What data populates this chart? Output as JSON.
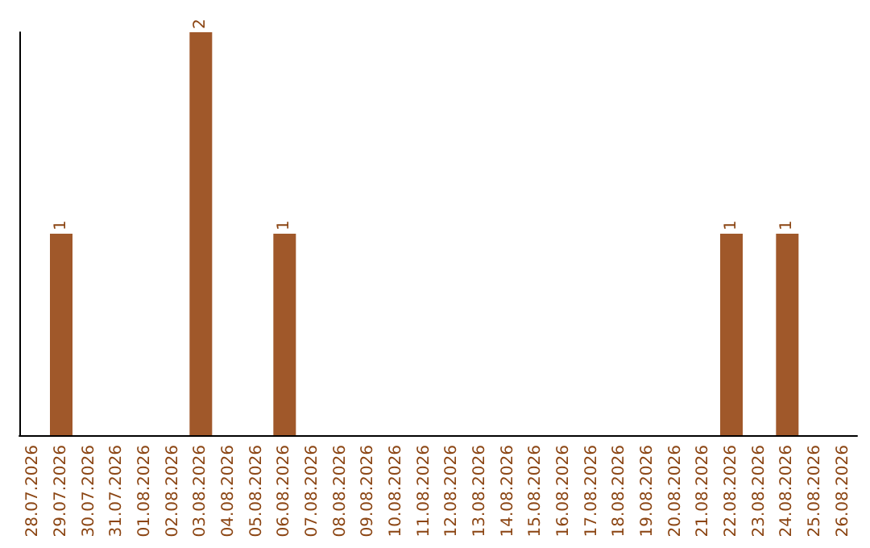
{
  "chart_data": {
    "type": "bar",
    "categories": [
      "28.07.2026",
      "29.07.2026",
      "30.07.2026",
      "31.07.2026",
      "01.08.2026",
      "02.08.2026",
      "03.08.2026",
      "04.08.2026",
      "05.08.2026",
      "06.08.2026",
      "07.08.2026",
      "08.08.2026",
      "09.08.2026",
      "10.08.2026",
      "11.08.2026",
      "12.08.2026",
      "13.08.2026",
      "14.08.2026",
      "15.08.2026",
      "16.08.2026",
      "17.08.2026",
      "18.08.2026",
      "19.08.2026",
      "20.08.2026",
      "21.08.2026",
      "22.08.2026",
      "23.08.2026",
      "24.08.2026",
      "25.08.2026",
      "26.08.2026"
    ],
    "values": [
      0,
      1,
      0,
      0,
      0,
      0,
      2,
      0,
      0,
      1,
      0,
      0,
      0,
      0,
      0,
      0,
      0,
      0,
      0,
      0,
      0,
      0,
      0,
      0,
      0,
      1,
      0,
      1,
      0,
      0
    ],
    "value_labels": [
      null,
      "1",
      null,
      null,
      null,
      null,
      "2",
      null,
      null,
      "1",
      null,
      null,
      null,
      null,
      null,
      null,
      null,
      null,
      null,
      null,
      null,
      null,
      null,
      null,
      null,
      "1",
      null,
      "1",
      null,
      null
    ],
    "color": "#a0582a"
  }
}
